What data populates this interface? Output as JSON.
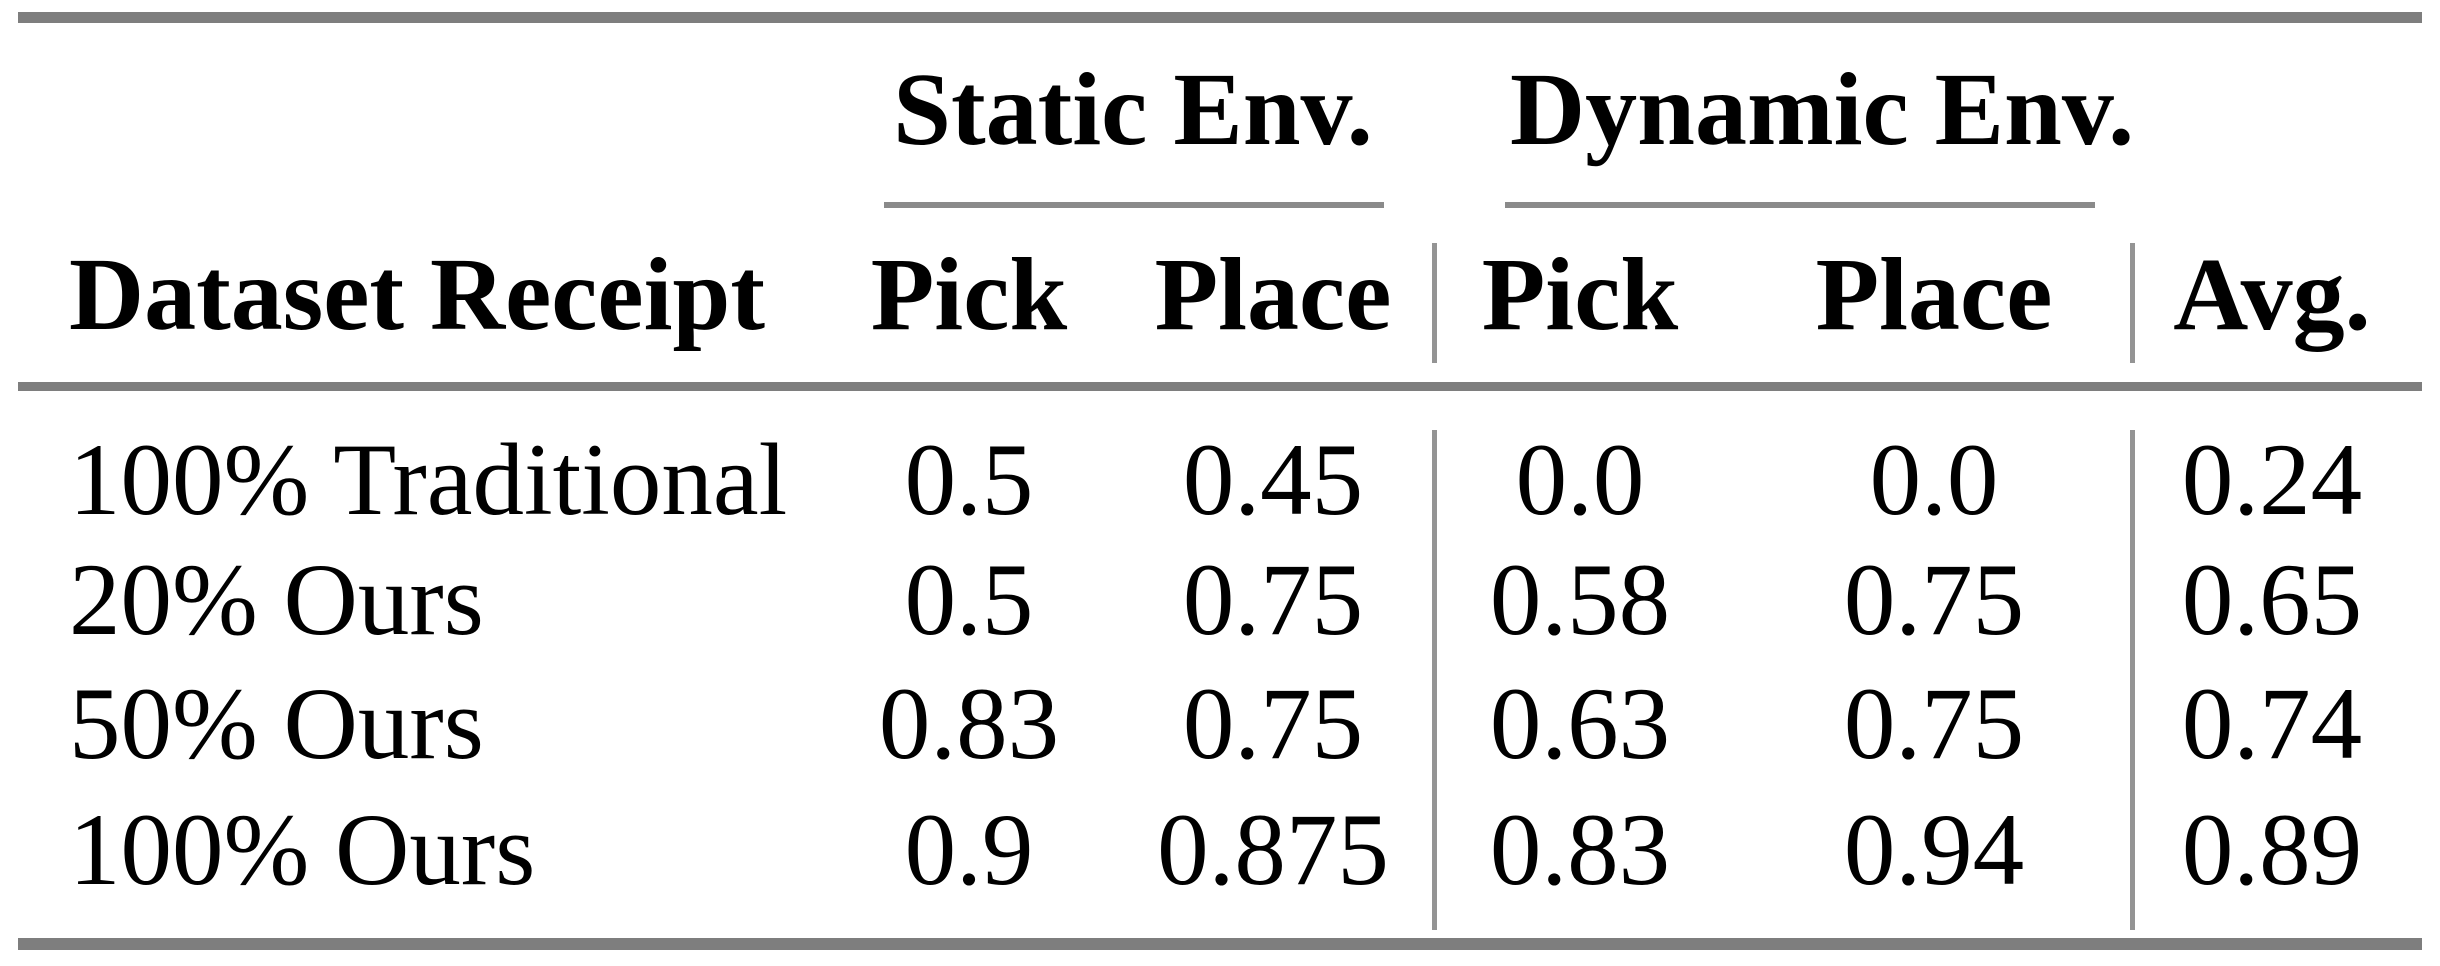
{
  "table": {
    "title_semantics": "Pick-and-place success rates by dataset receipt in static and dynamic environments",
    "group_headers": [
      {
        "label": "Static Env.",
        "columns": [
          "Pick",
          "Place"
        ]
      },
      {
        "label": "Dynamic Env.",
        "columns": [
          "Pick",
          "Place"
        ]
      }
    ],
    "col_headers": [
      "Dataset Receipt",
      "Pick",
      "Place",
      "Pick",
      "Place",
      "Avg."
    ],
    "rows": [
      {
        "label": "100% Traditional",
        "values": [
          "0.5",
          "0.45",
          "0.0",
          "0.0",
          "0.24"
        ]
      },
      {
        "label": "20% Ours",
        "values": [
          "0.5",
          "0.75",
          "0.58",
          "0.75",
          "0.65"
        ]
      },
      {
        "label": "50% Ours",
        "values": [
          "0.83",
          "0.75",
          "0.63",
          "0.75",
          "0.74"
        ]
      },
      {
        "label": "100% Ours",
        "values": [
          "0.9",
          "0.875",
          "0.83",
          "0.94",
          "0.89"
        ]
      }
    ],
    "colors": {
      "thick_rule": "#7e7e7e",
      "cmidrule": "#8a8a8a",
      "vertical_separator": "#949494",
      "text": "#000000",
      "background": "#ffffff"
    }
  }
}
